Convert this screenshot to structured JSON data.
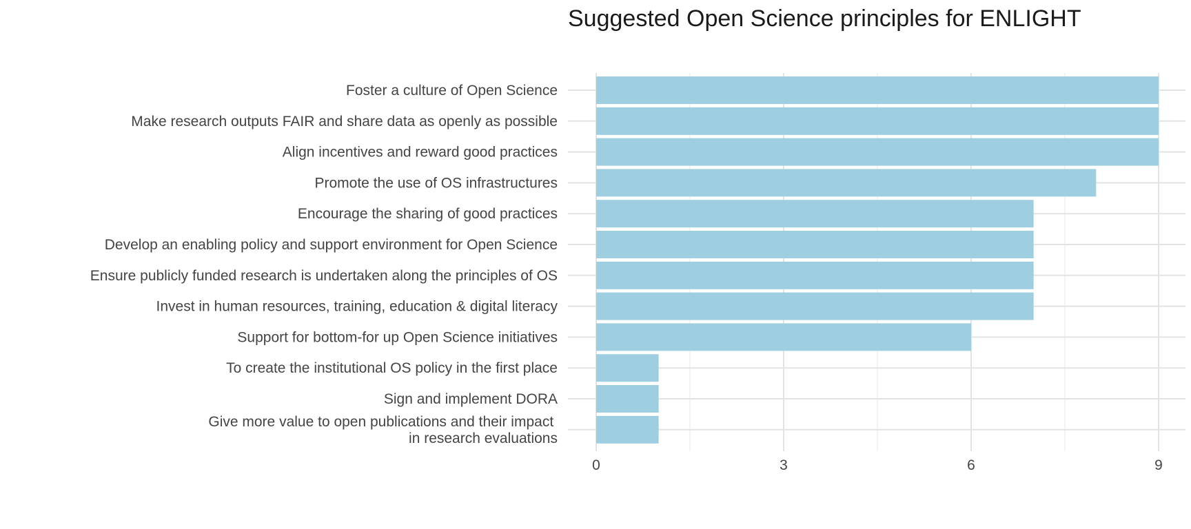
{
  "chart_data": {
    "type": "bar",
    "orientation": "horizontal",
    "title": "Suggested Open Science principles for ENLIGHT",
    "xlabel": "",
    "ylabel": "",
    "categories": [
      "Foster a culture of Open Science",
      "Make research outputs FAIR and share data as openly as possible",
      "Align incentives and reward good practices",
      "Promote the use of OS infrastructures",
      "Encourage the sharing of good practices",
      "Develop an enabling policy and support environment for Open Science",
      "Ensure publicly funded research is undertaken along the principles of OS",
      "Invest in human resources, training, education & digital literacy",
      "Support for bottom-for up Open Science initiatives",
      "To create the institutional OS policy in the first place",
      "Sign and implement DORA",
      "Give more value to open publications and their impact \nin research evaluations"
    ],
    "values": [
      9,
      9,
      9,
      8,
      7,
      7,
      7,
      7,
      6,
      1,
      1,
      1
    ],
    "xlim": [
      0,
      9
    ],
    "xticks": [
      0,
      3,
      6,
      9
    ],
    "grid": true,
    "bar_color": "#9ECFE1"
  }
}
